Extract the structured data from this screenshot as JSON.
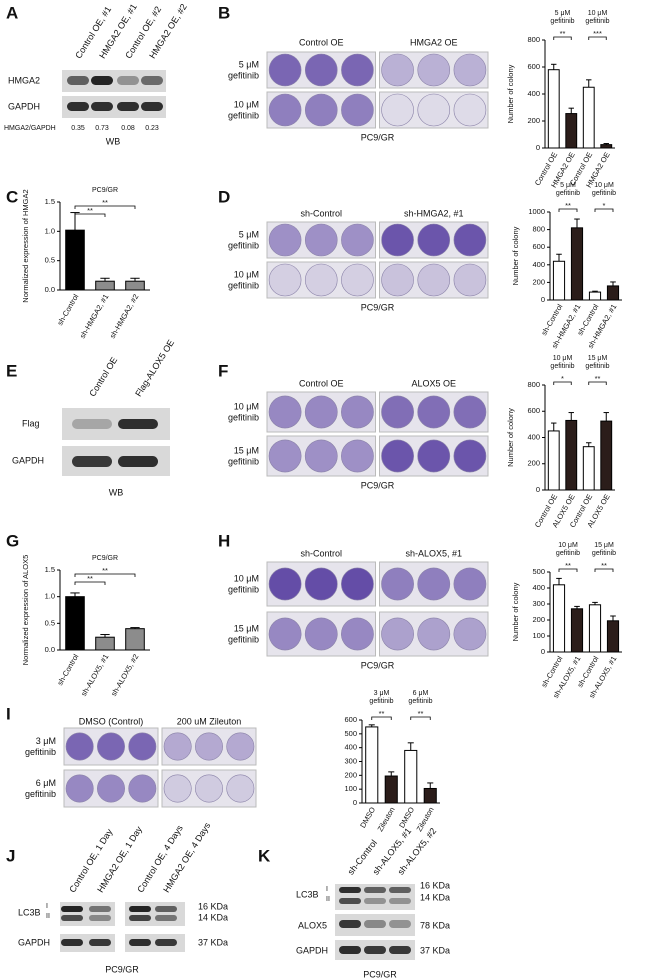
{
  "panels": {
    "A": {
      "label": "A",
      "lanes": [
        "Control OE, #1",
        "HMGA2 OE, #1",
        "Control OE, #2",
        "HMGA2 OE, #2"
      ],
      "rows": [
        "HMGA2",
        "GAPDH"
      ],
      "ratio_label": "HMGA2/GAPDH",
      "ratios": [
        0.35,
        0.73,
        0.08,
        0.23
      ],
      "footer": "WB"
    },
    "B": {
      "label": "B",
      "groups": [
        "Control OE",
        "HMGA2 OE"
      ],
      "rows": [
        [
          "5 μM",
          "gefitinib"
        ],
        [
          "10 μM",
          "gefitinib"
        ]
      ],
      "footer": "PC9/GR"
    },
    "C": {
      "label": "C"
    },
    "D": {
      "label": "D",
      "groups": [
        "sh-Control",
        "sh-HMGA2, #1"
      ],
      "rows": [
        [
          "5 μM",
          "gefitinib"
        ],
        [
          "10 μM",
          "gefitinib"
        ]
      ],
      "footer": "PC9/GR"
    },
    "E": {
      "label": "E",
      "lanes": [
        "Control OE",
        "Flag-ALOX5 OE"
      ],
      "rows": [
        "Flag",
        "GAPDH"
      ],
      "footer": "WB"
    },
    "F": {
      "label": "F",
      "groups": [
        "Control OE",
        "ALOX5 OE"
      ],
      "rows": [
        [
          "10 μM",
          "gefitinib"
        ],
        [
          "15 μM",
          "gefitinib"
        ]
      ],
      "footer": "PC9/GR"
    },
    "G": {
      "label": "G"
    },
    "H": {
      "label": "H",
      "groups": [
        "sh-Control",
        "sh-ALOX5, #1"
      ],
      "rows": [
        [
          "10 μM",
          "gefitinib"
        ],
        [
          "15 μM",
          "gefitinib"
        ]
      ],
      "footer": "PC9/GR"
    },
    "I": {
      "label": "I",
      "groups": [
        "DMSO (Control)",
        "200 uM Zileuton"
      ],
      "rows": [
        [
          "3 μM",
          "gefitinib"
        ],
        [
          "6 μM",
          "gefitinib"
        ]
      ]
    },
    "J": {
      "label": "J",
      "lanes": [
        "Control OE, 1 Day",
        "HMGA2 OE, 1 Day",
        "Control OE, 4 Days",
        "HMGA2 OE, 4 Days"
      ],
      "rows": [
        "LC3B",
        "GAPDH"
      ],
      "bands": [
        "I",
        "II"
      ],
      "sizes": [
        "16 KDa",
        "14 KDa",
        "37 KDa"
      ],
      "footer": "PC9/GR"
    },
    "K": {
      "label": "K",
      "lanes": [
        "sh-Control",
        "sh-ALOX5, #1",
        "sh-ALOX5, #2"
      ],
      "rows": [
        "LC3B",
        "ALOX5",
        "GAPDH"
      ],
      "bands": [
        "I",
        "II"
      ],
      "sizes": [
        "16 KDa",
        "14 KDa",
        "78 KDa",
        "37 KDa"
      ],
      "footer": "PC9/GR"
    }
  },
  "chart_data": [
    {
      "type": "bar",
      "y_label": "Number of colony",
      "categories": [
        "Control OE",
        "HMGA2 OE",
        "Control OE",
        "HMGA2 OE"
      ],
      "values": [
        580,
        255,
        450,
        25
      ],
      "errors": [
        40,
        40,
        55,
        8
      ],
      "colors": [
        "#ffffff",
        "#2b1d1a",
        "#ffffff",
        "#2b1d1a"
      ],
      "ylim": [
        0,
        800
      ],
      "yticks": [
        0,
        200,
        400,
        600,
        800
      ],
      "brackets": [
        {
          "pair": [
            0,
            1
          ],
          "label": "**",
          "group": [
            "5 μM",
            "gefitinib"
          ]
        },
        {
          "pair": [
            2,
            3
          ],
          "label": "***",
          "group": [
            "10 μM",
            "gefitinib"
          ]
        }
      ]
    },
    {
      "type": "bar",
      "subtitle": "PC9/GR",
      "y_label": "Normalized expression of HMGA2",
      "categories": [
        "sh-Control",
        "sh-HMGA2, #1",
        "sh-HMGA2, #2"
      ],
      "values": [
        1.02,
        0.15,
        0.15
      ],
      "errors": [
        0.3,
        0.05,
        0.05
      ],
      "colors": [
        "#000000",
        "#8c8c8c",
        "#8c8c8c"
      ],
      "ylim": [
        0,
        1.5
      ],
      "yticks": [
        {
          "value": 0,
          "label": "0.0"
        },
        0.5,
        {
          "value": 1,
          "label": "1.0"
        },
        1.5
      ],
      "brackets": [
        {
          "pair": [
            0,
            1
          ],
          "label": "**"
        },
        {
          "pair": [
            0,
            2
          ],
          "label": "**"
        }
      ]
    },
    {
      "type": "bar",
      "y_label": "Number of colony",
      "categories": [
        "sh-Control",
        "sh-HMGA2, #1",
        "sh-Control",
        "sh-HMGA2, #1"
      ],
      "values": [
        440,
        820,
        90,
        160
      ],
      "errors": [
        80,
        100,
        10,
        45
      ],
      "colors": [
        "#ffffff",
        "#2b1d1a",
        "#ffffff",
        "#2b1d1a"
      ],
      "ylim": [
        0,
        1000
      ],
      "yticks": [
        0,
        200,
        400,
        600,
        800,
        1000
      ],
      "brackets": [
        {
          "pair": [
            0,
            1
          ],
          "label": "**",
          "group": [
            "5 μM",
            "gefitinib"
          ]
        },
        {
          "pair": [
            2,
            3
          ],
          "label": "*",
          "group": [
            "10 μM",
            "gefitinib"
          ]
        }
      ]
    },
    {
      "type": "bar",
      "y_label": "Number of colony",
      "categories": [
        "Control OE",
        "ALOX5 OE",
        "Control OE",
        "ALOX5 OE"
      ],
      "values": [
        450,
        530,
        330,
        525
      ],
      "errors": [
        60,
        60,
        30,
        65
      ],
      "colors": [
        "#ffffff",
        "#2b1d1a",
        "#ffffff",
        "#2b1d1a"
      ],
      "ylim": [
        0,
        800
      ],
      "yticks": [
        0,
        200,
        400,
        600,
        800
      ],
      "brackets": [
        {
          "pair": [
            0,
            1
          ],
          "label": "*",
          "group": [
            "10 μM",
            "gefitinib"
          ]
        },
        {
          "pair": [
            2,
            3
          ],
          "label": "**",
          "group": [
            "15 μM",
            "gefitinib"
          ]
        }
      ]
    },
    {
      "type": "bar",
      "subtitle": "PC9/GR",
      "y_label": "Normalized expression of ALOX5",
      "categories": [
        "sh-Control",
        "sh-ALOX5, #1",
        "sh-ALOX5, #2"
      ],
      "values": [
        1.0,
        0.24,
        0.4
      ],
      "errors": [
        0.07,
        0.05,
        0.02
      ],
      "colors": [
        "#000000",
        "#8c8c8c",
        "#8c8c8c"
      ],
      "ylim": [
        0,
        1.5
      ],
      "yticks": [
        {
          "value": 0,
          "label": "0.0"
        },
        0.5,
        {
          "value": 1,
          "label": "1.0"
        },
        1.5
      ],
      "brackets": [
        {
          "pair": [
            0,
            1
          ],
          "label": "**"
        },
        {
          "pair": [
            0,
            2
          ],
          "label": "**"
        }
      ]
    },
    {
      "type": "bar",
      "y_label": "Number of colony",
      "categories": [
        "sh-Control",
        "sh-ALOX5, #1",
        "sh-Control",
        "sh-ALOX5, #1"
      ],
      "values": [
        420,
        270,
        295,
        195
      ],
      "errors": [
        40,
        15,
        15,
        30
      ],
      "colors": [
        "#ffffff",
        "#2b1d1a",
        "#ffffff",
        "#2b1d1a"
      ],
      "ylim": [
        0,
        500
      ],
      "yticks": [
        0,
        100,
        200,
        300,
        400,
        500
      ],
      "brackets": [
        {
          "pair": [
            0,
            1
          ],
          "label": "**",
          "group": [
            "10 μM",
            "gefitinib"
          ]
        },
        {
          "pair": [
            2,
            3
          ],
          "label": "**",
          "group": [
            "15 μM",
            "gefitinib"
          ]
        }
      ]
    },
    {
      "type": "bar",
      "categories": [
        "DMSO",
        "Zileuton",
        "DMSO",
        "Zileuton"
      ],
      "values": [
        550,
        195,
        380,
        105
      ],
      "errors": [
        15,
        30,
        55,
        40
      ],
      "colors": [
        "#ffffff",
        "#2b1d1a",
        "#ffffff",
        "#2b1d1a"
      ],
      "ylim": [
        0,
        600
      ],
      "yticks": [
        0,
        100,
        200,
        300,
        400,
        500,
        600
      ],
      "brackets": [
        {
          "pair": [
            0,
            1
          ],
          "label": "**",
          "group": [
            "3 μM",
            "gefitinib"
          ]
        },
        {
          "pair": [
            2,
            3
          ],
          "label": "**",
          "group": [
            "6 μM",
            "gefitinib"
          ]
        }
      ]
    }
  ]
}
